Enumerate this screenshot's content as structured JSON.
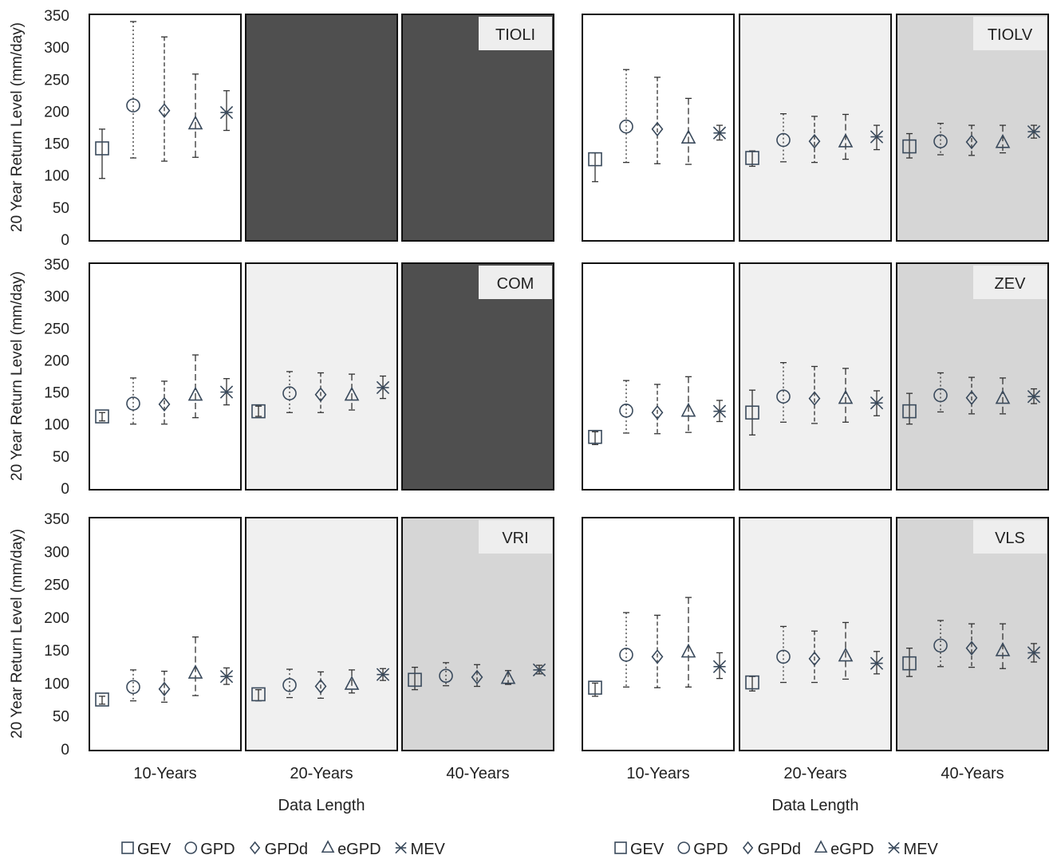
{
  "figure": {
    "y_axis_label": "20 Year Return Level (mm/day)",
    "x_axis_label": "Data Length",
    "y_ticks": [
      "0",
      "50",
      "100",
      "150",
      "200",
      "250",
      "300",
      "350"
    ],
    "columns": [
      "10-Years",
      "20-Years",
      "40-Years"
    ],
    "legend": [
      {
        "key": "GEV",
        "label": "GEV",
        "symbol": "square"
      },
      {
        "key": "GPD",
        "label": "GPD",
        "symbol": "circle"
      },
      {
        "key": "GPDd",
        "label": "GPDd",
        "symbol": "diamond"
      },
      {
        "key": "eGPD",
        "label": "eGPD",
        "symbol": "triangle"
      },
      {
        "key": "MEV",
        "label": "MEV",
        "symbol": "star"
      }
    ],
    "colors": {
      "marker": "#3a4a5c",
      "no_data": "#4f4f4f",
      "light": "#f0f0f0",
      "mid": "#d6d6d6",
      "white": "#ffffff",
      "label_box": "#eeeeee"
    }
  },
  "chart_data": {
    "type": "errorbar",
    "ylim": [
      0,
      350
    ],
    "methods": [
      "GEV",
      "GPD",
      "GPDd",
      "eGPD",
      "MEV"
    ],
    "method_line_styles": {
      "GEV": "solid",
      "GPD": "dotted",
      "GPDd": "dashed",
      "eGPD": "longdash",
      "MEV": "solid"
    },
    "stations": [
      {
        "name": "TIOLI",
        "panels": [
          {
            "period": "10-Years",
            "shade": "white",
            "points": [
              {
                "method": "GEV",
                "value": 142,
                "low": 95,
                "high": 172
              },
              {
                "method": "GPD",
                "value": 209,
                "low": 127,
                "high": 340
              },
              {
                "method": "GPDd",
                "value": 201,
                "low": 122,
                "high": 316
              },
              {
                "method": "eGPD",
                "value": 180,
                "low": 128,
                "high": 258
              },
              {
                "method": "MEV",
                "value": 198,
                "low": 170,
                "high": 232
              }
            ]
          },
          {
            "period": "20-Years",
            "shade": "no_data",
            "points": []
          },
          {
            "period": "40-Years",
            "shade": "no_data",
            "points": []
          }
        ]
      },
      {
        "name": "TIOLV",
        "panels": [
          {
            "period": "10-Years",
            "shade": "white",
            "points": [
              {
                "method": "GEV",
                "value": 125,
                "low": 90,
                "high": 135
              },
              {
                "method": "GPD",
                "value": 176,
                "low": 120,
                "high": 265
              },
              {
                "method": "GPDd",
                "value": 172,
                "low": 118,
                "high": 253
              },
              {
                "method": "eGPD",
                "value": 158,
                "low": 117,
                "high": 220
              },
              {
                "method": "MEV",
                "value": 166,
                "low": 155,
                "high": 178
              }
            ]
          },
          {
            "period": "20-Years",
            "shade": "light",
            "points": [
              {
                "method": "GEV",
                "value": 127,
                "low": 114,
                "high": 138
              },
              {
                "method": "GPD",
                "value": 155,
                "low": 121,
                "high": 196
              },
              {
                "method": "GPDd",
                "value": 153,
                "low": 120,
                "high": 192
              },
              {
                "method": "eGPD",
                "value": 152,
                "low": 125,
                "high": 195
              },
              {
                "method": "MEV",
                "value": 160,
                "low": 140,
                "high": 178
              }
            ]
          },
          {
            "period": "40-Years",
            "shade": "mid",
            "points": [
              {
                "method": "GEV",
                "value": 145,
                "low": 127,
                "high": 165
              },
              {
                "method": "GPD",
                "value": 153,
                "low": 132,
                "high": 181
              },
              {
                "method": "GPDd",
                "value": 152,
                "low": 131,
                "high": 178
              },
              {
                "method": "eGPD",
                "value": 151,
                "low": 135,
                "high": 178
              },
              {
                "method": "MEV",
                "value": 168,
                "low": 158,
                "high": 178
              }
            ]
          }
        ]
      },
      {
        "name": "COM",
        "panels": [
          {
            "period": "10-Years",
            "shade": "white",
            "points": [
              {
                "method": "GEV",
                "value": 112,
                "low": 105,
                "high": 118
              },
              {
                "method": "GPD",
                "value": 132,
                "low": 100,
                "high": 172
              },
              {
                "method": "GPDd",
                "value": 131,
                "low": 100,
                "high": 167
              },
              {
                "method": "eGPD",
                "value": 145,
                "low": 110,
                "high": 208
              },
              {
                "method": "MEV",
                "value": 150,
                "low": 130,
                "high": 171
              }
            ]
          },
          {
            "period": "20-Years",
            "shade": "light",
            "points": [
              {
                "method": "GEV",
                "value": 120,
                "low": 112,
                "high": 128
              },
              {
                "method": "GPD",
                "value": 148,
                "low": 118,
                "high": 182
              },
              {
                "method": "GPDd",
                "value": 146,
                "low": 118,
                "high": 180
              },
              {
                "method": "eGPD",
                "value": 145,
                "low": 122,
                "high": 178
              },
              {
                "method": "MEV",
                "value": 157,
                "low": 140,
                "high": 175
              }
            ]
          },
          {
            "period": "40-Years",
            "shade": "no_data",
            "points": []
          }
        ]
      },
      {
        "name": "ZEV",
        "panels": [
          {
            "period": "10-Years",
            "shade": "white",
            "points": [
              {
                "method": "GEV",
                "value": 80,
                "low": 68,
                "high": 88
              },
              {
                "method": "GPD",
                "value": 121,
                "low": 86,
                "high": 168
              },
              {
                "method": "GPDd",
                "value": 118,
                "low": 85,
                "high": 162
              },
              {
                "method": "eGPD",
                "value": 120,
                "low": 87,
                "high": 174
              },
              {
                "method": "MEV",
                "value": 120,
                "low": 104,
                "high": 137
              }
            ]
          },
          {
            "period": "20-Years",
            "shade": "light",
            "points": [
              {
                "method": "GEV",
                "value": 118,
                "low": 83,
                "high": 153
              },
              {
                "method": "GPD",
                "value": 143,
                "low": 103,
                "high": 196
              },
              {
                "method": "GPDd",
                "value": 140,
                "low": 101,
                "high": 190
              },
              {
                "method": "eGPD",
                "value": 140,
                "low": 103,
                "high": 187
              },
              {
                "method": "MEV",
                "value": 133,
                "low": 113,
                "high": 152
              }
            ]
          },
          {
            "period": "40-Years",
            "shade": "mid",
            "points": [
              {
                "method": "GEV",
                "value": 120,
                "low": 100,
                "high": 148
              },
              {
                "method": "GPD",
                "value": 145,
                "low": 119,
                "high": 180
              },
              {
                "method": "GPDd",
                "value": 141,
                "low": 116,
                "high": 173
              },
              {
                "method": "eGPD",
                "value": 140,
                "low": 116,
                "high": 172
              },
              {
                "method": "MEV",
                "value": 143,
                "low": 132,
                "high": 155
              }
            ]
          }
        ]
      },
      {
        "name": "VRI",
        "panels": [
          {
            "period": "10-Years",
            "shade": "white",
            "points": [
              {
                "method": "GEV",
                "value": 75,
                "low": 68,
                "high": 80
              },
              {
                "method": "GPD",
                "value": 94,
                "low": 73,
                "high": 120
              },
              {
                "method": "GPDd",
                "value": 91,
                "low": 71,
                "high": 118
              },
              {
                "method": "eGPD",
                "value": 115,
                "low": 81,
                "high": 170
              },
              {
                "method": "MEV",
                "value": 110,
                "low": 98,
                "high": 123
              }
            ]
          },
          {
            "period": "20-Years",
            "shade": "light",
            "points": [
              {
                "method": "GEV",
                "value": 83,
                "low": 73,
                "high": 90
              },
              {
                "method": "GPD",
                "value": 97,
                "low": 78,
                "high": 121
              },
              {
                "method": "GPDd",
                "value": 95,
                "low": 77,
                "high": 117
              },
              {
                "method": "eGPD",
                "value": 98,
                "low": 85,
                "high": 120
              },
              {
                "method": "MEV",
                "value": 113,
                "low": 104,
                "high": 122
              }
            ]
          },
          {
            "period": "40-Years",
            "shade": "mid",
            "points": [
              {
                "method": "GEV",
                "value": 105,
                "low": 90,
                "high": 124
              },
              {
                "method": "GPD",
                "value": 111,
                "low": 96,
                "high": 131
              },
              {
                "method": "GPDd",
                "value": 109,
                "low": 95,
                "high": 128
              },
              {
                "method": "eGPD",
                "value": 107,
                "low": 98,
                "high": 119
              },
              {
                "method": "MEV",
                "value": 120,
                "low": 114,
                "high": 127
              }
            ]
          }
        ]
      },
      {
        "name": "VLS",
        "panels": [
          {
            "period": "10-Years",
            "shade": "white",
            "points": [
              {
                "method": "GEV",
                "value": 93,
                "low": 80,
                "high": 100
              },
              {
                "method": "GPD",
                "value": 143,
                "low": 94,
                "high": 207
              },
              {
                "method": "GPDd",
                "value": 140,
                "low": 93,
                "high": 203
              },
              {
                "method": "eGPD",
                "value": 147,
                "low": 94,
                "high": 230
              },
              {
                "method": "MEV",
                "value": 125,
                "low": 107,
                "high": 146
              }
            ]
          },
          {
            "period": "20-Years",
            "shade": "light",
            "points": [
              {
                "method": "GEV",
                "value": 101,
                "low": 88,
                "high": 110
              },
              {
                "method": "GPD",
                "value": 140,
                "low": 101,
                "high": 186
              },
              {
                "method": "GPDd",
                "value": 137,
                "low": 101,
                "high": 179
              },
              {
                "method": "eGPD",
                "value": 141,
                "low": 106,
                "high": 192
              },
              {
                "method": "MEV",
                "value": 130,
                "low": 114,
                "high": 148
              }
            ]
          },
          {
            "period": "40-Years",
            "shade": "mid",
            "points": [
              {
                "method": "GEV",
                "value": 130,
                "low": 110,
                "high": 153
              },
              {
                "method": "GPD",
                "value": 157,
                "low": 125,
                "high": 195
              },
              {
                "method": "GPDd",
                "value": 153,
                "low": 124,
                "high": 190
              },
              {
                "method": "eGPD",
                "value": 149,
                "low": 122,
                "high": 190
              },
              {
                "method": "MEV",
                "value": 146,
                "low": 132,
                "high": 160
              }
            ]
          }
        ]
      }
    ]
  }
}
